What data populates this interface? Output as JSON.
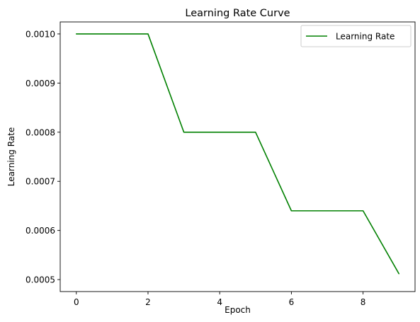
{
  "chart_data": {
    "type": "line",
    "title": "Learning Rate Curve",
    "xlabel": "Epoch",
    "ylabel": "Learning Rate",
    "xlim": [
      -0.45,
      9.45
    ],
    "ylim": [
      0.00047561,
      0.00102439
    ],
    "grid": false,
    "legend_position": "top-right",
    "x_ticks": [
      0,
      2,
      4,
      6,
      8
    ],
    "x_tick_labels": [
      "0",
      "2",
      "4",
      "6",
      "8"
    ],
    "y_ticks": [
      0.0005,
      0.0006,
      0.0007,
      0.0008,
      0.0009,
      0.001
    ],
    "y_tick_labels": [
      "0.0005",
      "0.0006",
      "0.0007",
      "0.0008",
      "0.0009",
      "0.0010"
    ],
    "series": [
      {
        "name": "Learning Rate",
        "color": "#008000",
        "x": [
          0,
          1,
          2,
          3,
          4,
          5,
          6,
          7,
          8,
          9
        ],
        "y": [
          0.001,
          0.001,
          0.001,
          0.0008,
          0.0008,
          0.0008,
          0.00064,
          0.00064,
          0.00064,
          0.000512
        ]
      }
    ]
  }
}
